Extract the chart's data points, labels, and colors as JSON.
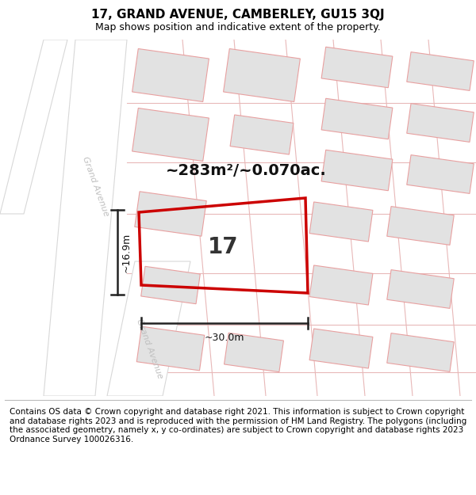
{
  "title": "17, GRAND AVENUE, CAMBERLEY, GU15 3QJ",
  "subtitle": "Map shows position and indicative extent of the property.",
  "area_label": "~283m²/~0.070ac.",
  "width_label": "~30.0m",
  "height_label": "~16.9m",
  "property_number": "17",
  "footer": "Contains OS data © Crown copyright and database right 2021. This information is subject to Crown copyright and database rights 2023 and is reproduced with the permission of HM Land Registry. The polygons (including the associated geometry, namely x, y co-ordinates) are subject to Crown copyright and database rights 2023 Ordnance Survey 100026316.",
  "background_color": "#ffffff",
  "building_fill": "#e2e2e2",
  "building_stroke": "#e8a0a0",
  "road_fill": "#ffffff",
  "road_stroke_light": "#e8b8b8",
  "road_stroke_white": "#d8d8d8",
  "plot_stroke": "#cc0000",
  "road_label_color": "#c0c0c0",
  "dim_color": "#222222",
  "title_fontsize": 11,
  "subtitle_fontsize": 9,
  "footer_fontsize": 7.5,
  "number_fontsize": 20,
  "area_fontsize": 14,
  "dim_fontsize": 9
}
